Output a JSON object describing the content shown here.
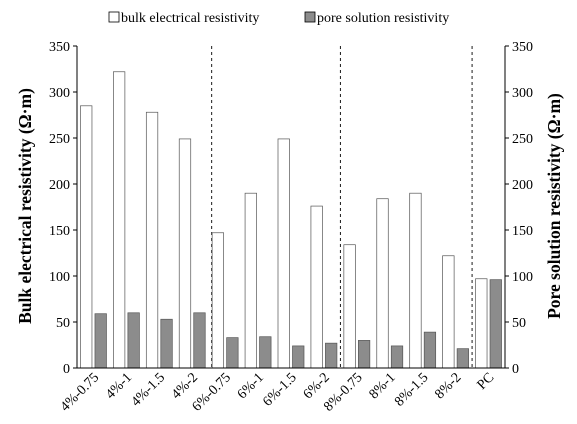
{
  "chart_data": {
    "type": "bar",
    "categories": [
      "4%-0.75",
      "4%-1",
      "4%-1.5",
      "4%-2",
      "6%-0.75",
      "6%-1",
      "6%-1.5",
      "6%-2",
      "8%-0.75",
      "8%-1",
      "8%-1.5",
      "8%-2",
      "PC"
    ],
    "series": [
      {
        "name": "bulk electrical resistivity",
        "values": [
          285,
          322,
          278,
          249,
          147,
          190,
          249,
          176,
          134,
          184,
          190,
          122,
          97
        ],
        "color": "#ffffff"
      },
      {
        "name": "pore solution resistivity",
        "values": [
          59,
          60,
          53,
          60,
          33,
          34,
          24,
          27,
          30,
          24,
          39,
          21,
          96
        ],
        "color": "#8c8c8c"
      }
    ],
    "ylabel": "Bulk electrical resistivity (Ω·m)",
    "y2label": "Pore solution resistivity (Ω·m)",
    "ylim": [
      0,
      350
    ],
    "y2lim": [
      0,
      350
    ],
    "yticks": [
      "0",
      "50",
      "100",
      "150",
      "200",
      "250",
      "300",
      "350"
    ],
    "y2ticks": [
      "0",
      "50",
      "100",
      "150",
      "200",
      "250",
      "300",
      "350"
    ],
    "group_separators_after": [
      "4%-2",
      "8%-2"
    ],
    "group_separators_before": [
      "6%-0.75"
    ],
    "legend_position": "top",
    "grid": false
  }
}
